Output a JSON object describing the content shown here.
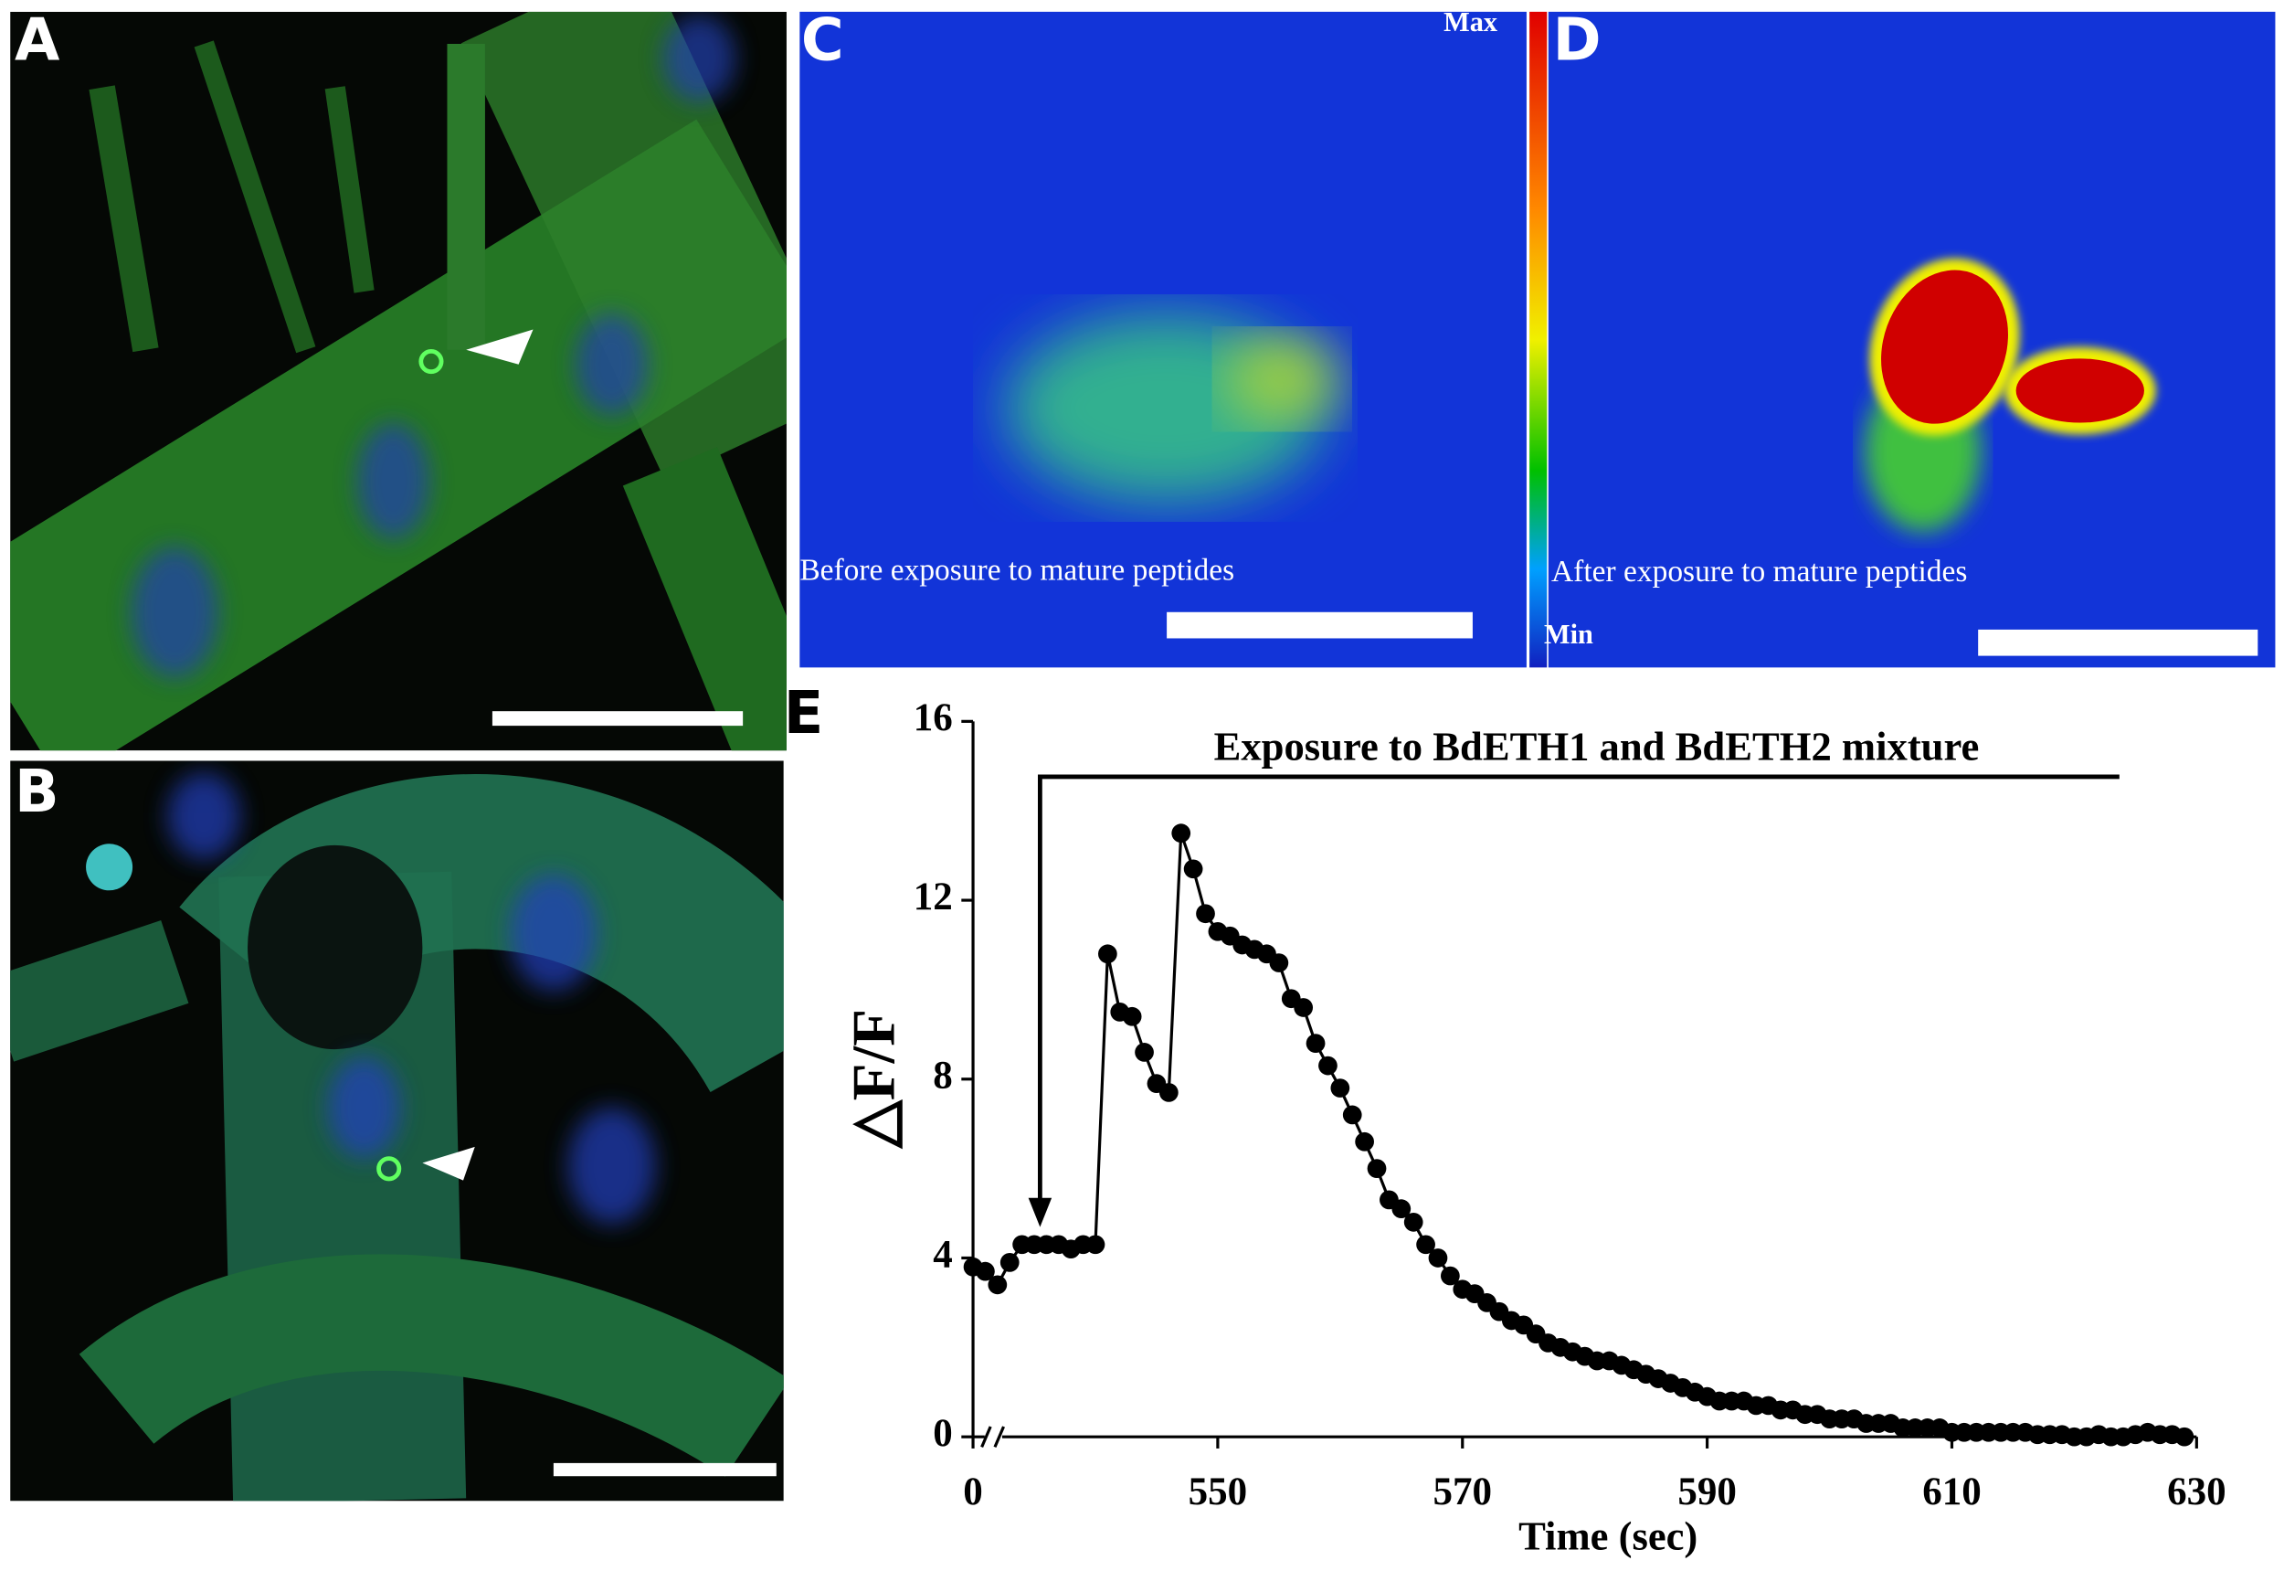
{
  "panel_labels": [
    "A",
    "B",
    "C",
    "D",
    "E"
  ],
  "captions": {
    "before": "Before exposure to mature peptides",
    "after": "After exposure to mature peptides"
  },
  "colorbar": {
    "max": "Max",
    "min": "Min"
  },
  "chart_data": {
    "type": "line",
    "annotation": "Exposure to BdETH1 and BdETH2 mixture",
    "xlabel": "Time (sec)",
    "ylabel": "△F/F",
    "x": [
      530,
      531,
      532,
      533,
      534,
      535,
      536,
      537,
      538,
      539,
      540,
      541,
      542,
      543,
      544,
      545,
      546,
      547,
      548,
      549,
      550,
      551,
      552,
      553,
      554,
      555,
      556,
      557,
      558,
      559,
      560,
      561,
      562,
      563,
      564,
      565,
      566,
      567,
      568,
      569,
      570,
      571,
      572,
      573,
      574,
      575,
      576,
      577,
      578,
      579,
      580,
      581,
      582,
      583,
      584,
      585,
      586,
      587,
      588,
      589,
      590,
      591,
      592,
      593,
      594,
      595,
      596,
      597,
      598,
      599,
      600,
      601,
      602,
      603,
      604,
      605,
      606,
      607,
      608,
      609,
      610,
      611,
      612,
      613,
      614,
      615,
      616,
      617,
      618,
      619,
      620,
      621,
      622,
      623,
      624,
      625,
      626,
      627,
      628,
      629
    ],
    "series": [
      {
        "name": null,
        "color": "#000000",
        "values": [
          3.8,
          3.7,
          3.4,
          3.9,
          4.3,
          4.3,
          4.3,
          4.3,
          4.2,
          4.3,
          4.3,
          10.8,
          9.5,
          9.4,
          8.6,
          7.9,
          7.7,
          13.5,
          12.7,
          11.7,
          11.3,
          11.2,
          11.0,
          10.9,
          10.8,
          10.6,
          9.8,
          9.6,
          8.8,
          8.3,
          7.8,
          7.2,
          6.6,
          6.0,
          5.3,
          5.1,
          4.8,
          4.3,
          4.0,
          3.6,
          3.3,
          3.2,
          3.0,
          2.8,
          2.6,
          2.5,
          2.3,
          2.1,
          2.0,
          1.9,
          1.8,
          1.7,
          1.7,
          1.6,
          1.5,
          1.4,
          1.3,
          1.2,
          1.1,
          1.0,
          0.9,
          0.8,
          0.8,
          0.8,
          0.7,
          0.7,
          0.6,
          0.6,
          0.5,
          0.5,
          0.4,
          0.4,
          0.4,
          0.3,
          0.3,
          0.3,
          0.2,
          0.2,
          0.2,
          0.2,
          0.1,
          0.1,
          0.1,
          0.1,
          0.1,
          0.1,
          0.1,
          0.05,
          0.05,
          0.05,
          0.0,
          0.0,
          0.05,
          0.0,
          0.0,
          0.05,
          0.1,
          0.05,
          0.05,
          0.0
        ]
      }
    ],
    "xlim": [
      530,
      630
    ],
    "xticks": [
      {
        "value": 530,
        "label": "0"
      },
      550,
      570,
      590,
      610,
      630
    ],
    "ylim": [
      0,
      16
    ],
    "yticks": [
      0,
      4,
      8,
      12,
      16
    ]
  }
}
